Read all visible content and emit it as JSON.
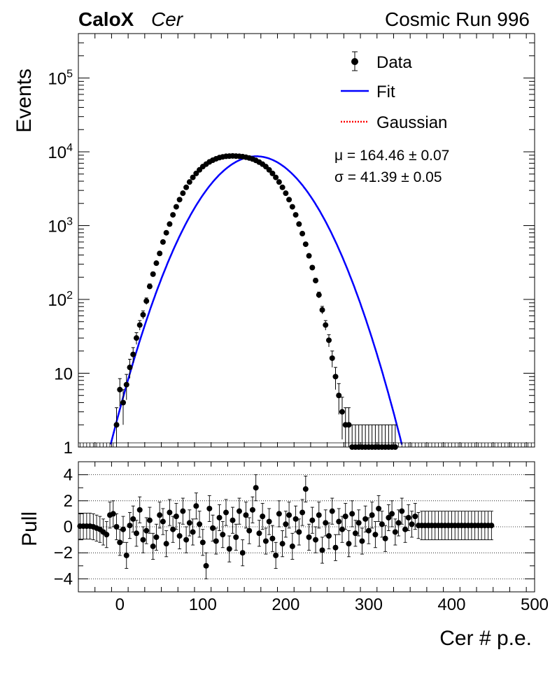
{
  "chart_data": [
    {
      "type": "scatter",
      "panel": "main",
      "experiment": "CaloX",
      "channel": "Cer",
      "run_label": "Cosmic Run 996",
      "xlabel": "Cer # p.e.",
      "ylabel": "Events",
      "xlim": [
        -50,
        500
      ],
      "ylim": [
        1,
        400000
      ],
      "yscale": "log",
      "y_ticks": [
        "1",
        "10",
        "10^2",
        "10^3",
        "10^4",
        "10^5"
      ],
      "legend": {
        "placement": "top-right",
        "entries": [
          {
            "label": "Data",
            "style": "marker",
            "color": "#000000"
          },
          {
            "label": "Fit",
            "style": "solid-line",
            "color": "#0000ff"
          },
          {
            "label": "Gaussian",
            "style": "dotted-line",
            "color": "#ff0000"
          }
        ]
      },
      "fit_params": {
        "mu_text": "μ = 164.46 ± 0.07",
        "sigma_text": "σ = 41.39 ± 0.05"
      },
      "gaussian": {
        "mu": 164.46,
        "sigma": 41.39,
        "amplitude": 8700
      },
      "data_points": {
        "x": [
          -4,
          0,
          4,
          8,
          12,
          16,
          20,
          24,
          28,
          32,
          36,
          40,
          44,
          48,
          52,
          56,
          60,
          64,
          68,
          72,
          76,
          80,
          84,
          88,
          92,
          96,
          100,
          104,
          108,
          112,
          116,
          120,
          124,
          128,
          132,
          136,
          140,
          144,
          148,
          152,
          156,
          160,
          164,
          168,
          172,
          176,
          180,
          184,
          188,
          192,
          196,
          200,
          204,
          208,
          212,
          216,
          220,
          224,
          228,
          232,
          236,
          240,
          244,
          248,
          252,
          256,
          260,
          264,
          268,
          272,
          276,
          280,
          284,
          288,
          292,
          296,
          300,
          304,
          308,
          312,
          316,
          320,
          324,
          328,
          332
        ],
        "y": [
          2,
          6,
          4,
          7,
          12,
          18,
          30,
          45,
          62,
          95,
          150,
          220,
          310,
          420,
          600,
          800,
          1050,
          1400,
          1800,
          2250,
          2750,
          3300,
          3900,
          4500,
          5100,
          5700,
          6300,
          6800,
          7300,
          7700,
          8050,
          8350,
          8550,
          8700,
          8750,
          8800,
          8750,
          8700,
          8600,
          8450,
          8250,
          8000,
          7650,
          7250,
          6800,
          6300,
          5700,
          5100,
          4500,
          3900,
          3300,
          2750,
          2250,
          1800,
          1400,
          1050,
          780,
          560,
          390,
          270,
          180,
          115,
          72,
          45,
          28,
          16,
          9,
          5,
          3,
          2,
          2,
          1,
          1,
          1,
          1,
          1,
          1,
          1,
          1,
          1,
          1,
          1,
          1,
          1,
          1
        ]
      }
    },
    {
      "type": "scatter",
      "panel": "pull",
      "xlabel": "Cer # p.e.",
      "ylabel": "Pull",
      "xlim": [
        -50,
        500
      ],
      "ylim": [
        -5,
        5
      ],
      "x_ticks": [
        0,
        100,
        200,
        300,
        400,
        500
      ],
      "y_ticks": [
        -4,
        -2,
        0,
        2,
        4
      ],
      "reference_lines": [
        -4,
        -2,
        0,
        2,
        4
      ],
      "data_points": {
        "x": [
          -48,
          -44,
          -40,
          -36,
          -32,
          -28,
          -24,
          -20,
          -16,
          -12,
          -8,
          -4,
          0,
          4,
          8,
          12,
          16,
          20,
          24,
          28,
          32,
          36,
          40,
          44,
          48,
          52,
          56,
          60,
          64,
          68,
          72,
          76,
          80,
          84,
          88,
          92,
          96,
          100,
          104,
          108,
          112,
          116,
          120,
          124,
          128,
          132,
          136,
          140,
          144,
          148,
          152,
          156,
          160,
          164,
          168,
          172,
          176,
          180,
          184,
          188,
          192,
          196,
          200,
          204,
          208,
          212,
          216,
          220,
          224,
          228,
          232,
          236,
          240,
          244,
          248,
          252,
          256,
          260,
          264,
          268,
          272,
          276,
          280,
          284,
          288,
          292,
          296,
          300,
          304,
          308,
          312,
          316,
          320,
          324,
          328,
          332,
          336,
          340,
          344,
          348,
          352,
          356,
          360,
          364,
          368,
          372,
          376,
          380,
          384,
          388,
          392,
          396,
          400,
          404,
          408,
          412,
          416,
          420,
          424,
          428,
          432,
          436,
          440,
          444,
          448
        ],
        "y": [
          0.05,
          0.05,
          0.05,
          0.05,
          0.0,
          -0.1,
          -0.2,
          -0.4,
          -0.6,
          0.9,
          1.0,
          0.0,
          -1.2,
          -0.2,
          -2.2,
          0.1,
          0.6,
          -0.5,
          1.3,
          -1.0,
          -0.3,
          0.5,
          -1.5,
          -0.8,
          0.9,
          0.4,
          -1.3,
          1.1,
          -0.2,
          0.8,
          -0.7,
          1.2,
          -1.0,
          0.3,
          -0.4,
          1.6,
          0.2,
          -1.2,
          -3.0,
          1.4,
          -0.1,
          -1.1,
          0.7,
          -0.6,
          1.1,
          -1.7,
          0.5,
          -0.8,
          1.2,
          -2.0,
          0.9,
          -0.3,
          1.3,
          3.0,
          -0.5,
          0.8,
          -1.1,
          0.4,
          -0.9,
          -2.2,
          1.0,
          -1.3,
          0.2,
          0.9,
          -1.5,
          0.6,
          -0.4,
          1.1,
          2.9,
          -0.8,
          0.5,
          -1.0,
          0.9,
          -1.8,
          0.3,
          -0.7,
          1.2,
          -1.6,
          0.4,
          -0.2,
          0.8,
          -1.3,
          1.0,
          -0.5,
          0.3,
          -1.1,
          0.6,
          -0.3,
          0.9,
          -0.6,
          1.4,
          0.2,
          -0.9,
          0.7,
          1.0,
          -0.4,
          0.3,
          1.2,
          -0.2,
          0.7,
          0.2,
          0.8,
          0.1,
          0.1,
          0.1,
          0.1,
          0.1,
          0.1,
          0.1,
          0.1,
          0.1,
          0.1,
          0.1,
          0.1,
          0.1,
          0.1,
          0.1,
          0.1,
          0.1,
          0.1,
          0.1,
          0.1,
          0.1,
          0.1,
          0.1
        ]
      }
    }
  ]
}
